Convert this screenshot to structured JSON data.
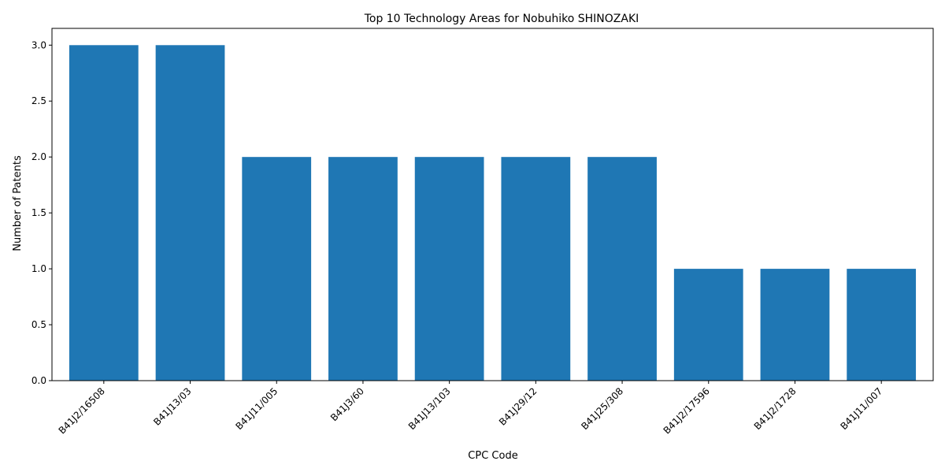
{
  "chart_data": {
    "type": "bar",
    "title": "Top 10 Technology Areas for Nobuhiko SHINOZAKI",
    "xlabel": "CPC Code",
    "ylabel": "Number of Patents",
    "categories": [
      "B41J2/16508",
      "B41J13/03",
      "B41J11/005",
      "B41J3/60",
      "B41J13/103",
      "B41J29/12",
      "B41J25/308",
      "B41J2/17596",
      "B41J2/1728",
      "B41J11/007"
    ],
    "values": [
      3,
      3,
      2,
      2,
      2,
      2,
      2,
      1,
      1,
      1
    ],
    "ylim": [
      0,
      3.15
    ],
    "yticks": [
      "0.0",
      "0.5",
      "1.0",
      "1.5",
      "2.0",
      "2.5",
      "3.0"
    ],
    "grid": false,
    "bar_color": "#1f77b4"
  }
}
